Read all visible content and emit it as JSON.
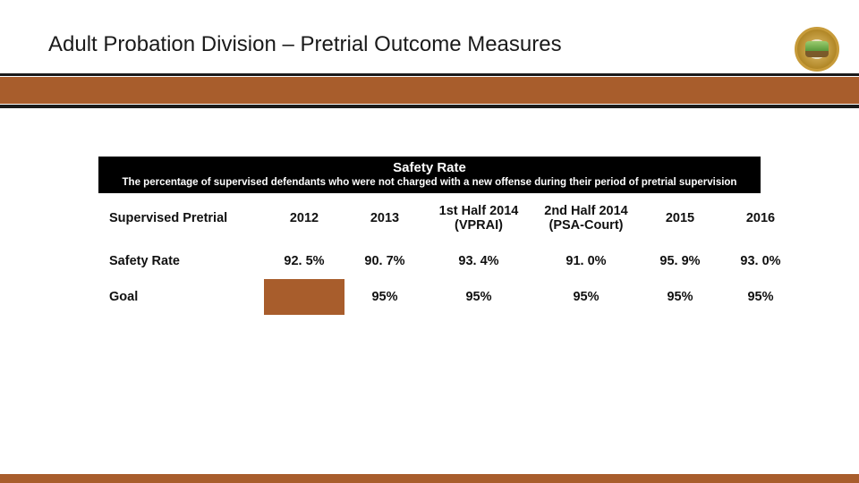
{
  "header": {
    "title": "Adult Probation Division – Pretrial Outcome Measures"
  },
  "colors": {
    "accent": "#a85d2c",
    "black": "#000000",
    "white": "#ffffff"
  },
  "safety_table": {
    "banner_title": "Safety Rate",
    "banner_subtitle": "The percentage of supervised defendants who were not charged with a new offense during their period of pretrial supervision",
    "columns": [
      {
        "key": "label",
        "header": "Supervised Pretrial",
        "class": "col-label rowlabel"
      },
      {
        "key": "y2012",
        "header": "2012",
        "class": "col-year"
      },
      {
        "key": "y2013",
        "header": "2013",
        "class": "col-year"
      },
      {
        "key": "h1_2014",
        "header": "1st Half 2014 (VPRAI)",
        "class": "col-half"
      },
      {
        "key": "h2_2014",
        "header": "2nd Half 2014 (PSA-Court)",
        "class": "col-half"
      },
      {
        "key": "y2015",
        "header": "2015",
        "class": "col-year"
      },
      {
        "key": "y2016",
        "header": "2016",
        "class": "col-year"
      }
    ],
    "rows": [
      {
        "label": "Safety Rate",
        "y2012": "92. 5%",
        "y2013": "90. 7%",
        "h1_2014": "93. 4%",
        "h2_2014": "91. 0%",
        "y2015": "95. 9%",
        "y2016": "93. 0%"
      },
      {
        "label": "Goal",
        "y2012": "",
        "y2013": "95%",
        "h1_2014": "95%",
        "h2_2014": "95%",
        "y2015": "95%",
        "y2016": "95%",
        "blank_cell": "y2012"
      }
    ]
  }
}
